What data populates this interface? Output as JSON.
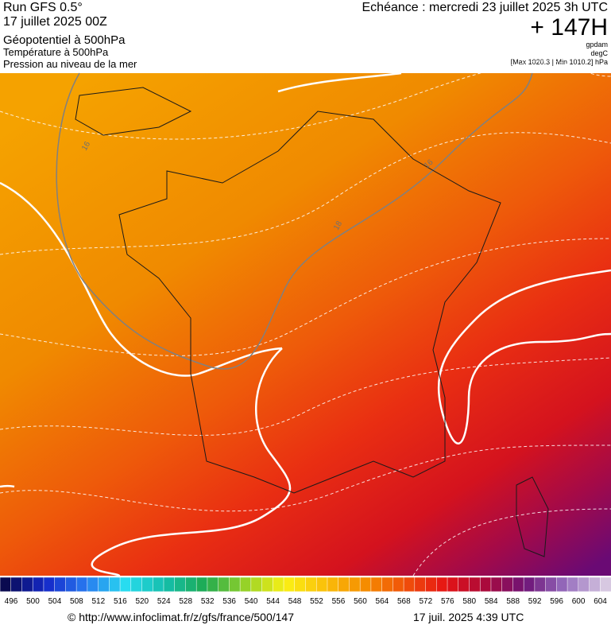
{
  "header": {
    "run": "Run GFS 0.5°",
    "date": "17 juillet 2025 00Z",
    "fields": [
      "Géopotentiel à 500hPa",
      "Température à 500hPa",
      "Pression au niveau de la mer"
    ],
    "forecast": "Echéance : mercredi 23 juillet 2025 3h UTC",
    "lead": "+ 147H",
    "units": [
      "gpdam",
      "degC",
      "[Max 1020.3 | Min 1010.2] hPa"
    ]
  },
  "map": {
    "contour_labels": [
      "16",
      "18",
      "16"
    ]
  },
  "scale": {
    "labels": [
      496,
      500,
      504,
      508,
      512,
      516,
      520,
      524,
      528,
      532,
      536,
      540,
      544,
      548,
      552,
      556,
      560,
      564,
      568,
      572,
      576,
      580,
      584,
      588,
      592,
      596,
      600,
      604
    ]
  },
  "footer": {
    "url": "© http://www.infoclimat.fr/z/gfs/france/500/147",
    "timestamp": "17 juil. 2025  4:39 UTC"
  }
}
